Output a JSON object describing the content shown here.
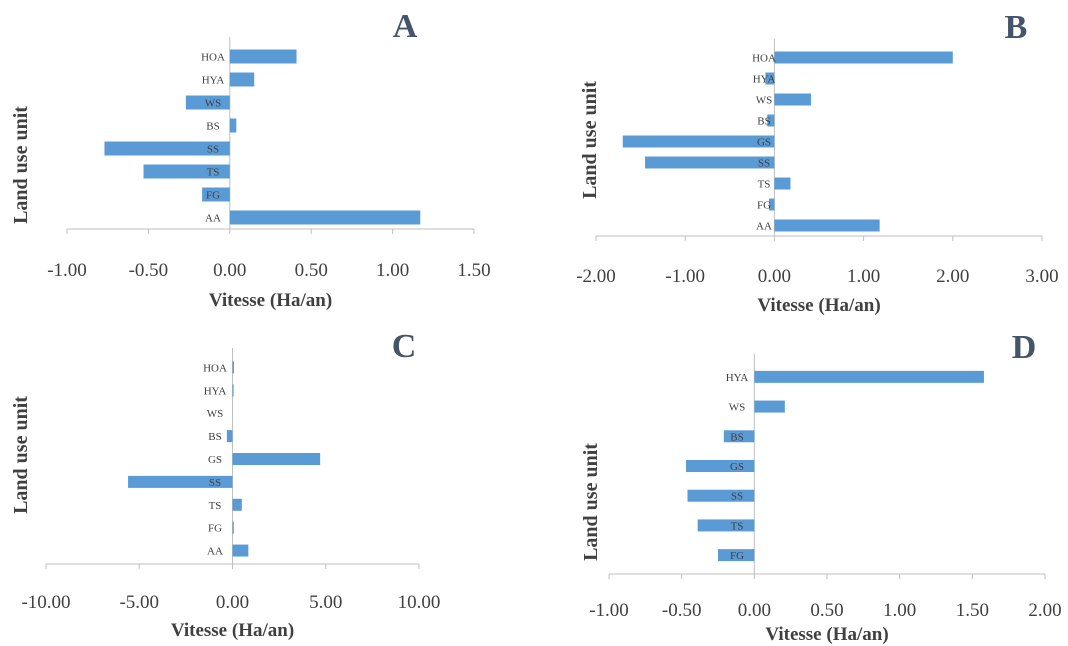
{
  "chart_data": [
    {
      "type": "bar",
      "orientation": "horizontal",
      "panel_label": "A",
      "categories": [
        "HOA",
        "HYA",
        "WS",
        "BS",
        "SS",
        "TS",
        "FG",
        "AA"
      ],
      "values": [
        0.41,
        0.15,
        -0.27,
        0.04,
        -0.77,
        -0.53,
        -0.17,
        1.17
      ],
      "xlabel": "Vitesse (Ha/an)",
      "ylabel": "Land use unit",
      "xlim": [
        -1.0,
        1.5
      ],
      "xticks": [
        "-1.00",
        "-0.50",
        "0.00",
        "0.50",
        "1.00",
        "1.50"
      ],
      "color": "#5b9bd5"
    },
    {
      "type": "bar",
      "orientation": "horizontal",
      "panel_label": "B",
      "categories": [
        "HOA",
        "HYA",
        "WS",
        "BS",
        "GS",
        "SS",
        "TS",
        "FG",
        "AA"
      ],
      "values": [
        2.0,
        -0.1,
        0.41,
        -0.08,
        -1.7,
        -1.45,
        0.18,
        -0.06,
        1.18
      ],
      "xlabel": "Vitesse (Ha/an)",
      "ylabel": "Land use unit",
      "xlim": [
        -2.0,
        3.0
      ],
      "xticks": [
        "-2.00",
        "-1.00",
        "0.00",
        "1.00",
        "2.00",
        "3.00"
      ],
      "color": "#5b9bd5"
    },
    {
      "type": "bar",
      "orientation": "horizontal",
      "panel_label": "C",
      "categories": [
        "HOA",
        "HYA",
        "WS",
        "BS",
        "GS",
        "SS",
        "TS",
        "FG",
        "AA"
      ],
      "values": [
        0.08,
        0.06,
        0.0,
        -0.3,
        4.7,
        -5.6,
        0.5,
        0.07,
        0.85
      ],
      "xlabel": "Vitesse (Ha/an)",
      "ylabel": "Land use unit",
      "xlim": [
        -10.0,
        10.0
      ],
      "xticks": [
        "-10.00",
        "-5.00",
        "0.00",
        "5.00",
        "10.00"
      ],
      "color": "#5b9bd5"
    },
    {
      "type": "bar",
      "orientation": "horizontal",
      "panel_label": "D",
      "categories": [
        "HYA",
        "WS",
        "BS",
        "GS",
        "SS",
        "TS",
        "FG"
      ],
      "values": [
        1.58,
        0.21,
        -0.21,
        -0.47,
        -0.46,
        -0.39,
        -0.25
      ],
      "xlabel": "Vitesse (Ha/an)",
      "ylabel": "Land use unit",
      "xlim": [
        -1.0,
        2.0
      ],
      "xticks": [
        "-1.00",
        "-0.50",
        "0.00",
        "0.50",
        "1.00",
        "1.50",
        "2.00"
      ],
      "color": "#5b9bd5"
    }
  ]
}
